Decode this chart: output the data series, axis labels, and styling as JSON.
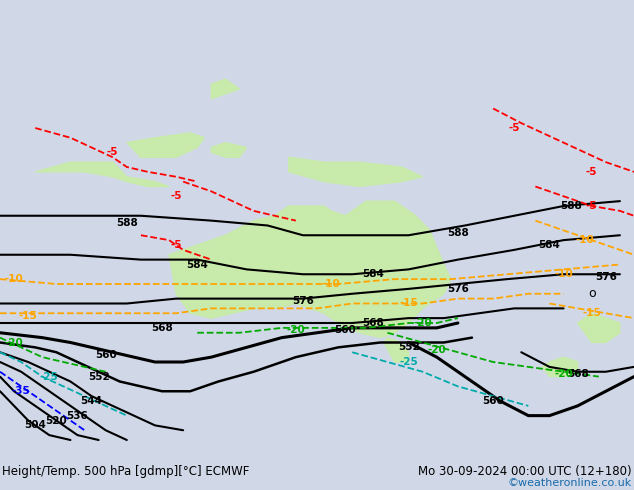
{
  "title_left": "Height/Temp. 500 hPa [gdmp][°C] ECMWF",
  "title_right": "Mo 30-09-2024 00:00 UTC (12+180)",
  "credit": "©weatheronline.co.uk",
  "background_color": "#d0d8e8",
  "land_color": "#c8eaaa",
  "australia_green": "#b8e090",
  "fig_width": 6.34,
  "fig_height": 4.9,
  "dpi": 100,
  "title_fontsize": 8.5,
  "credit_fontsize": 8,
  "credit_color": "#1a6aaa"
}
